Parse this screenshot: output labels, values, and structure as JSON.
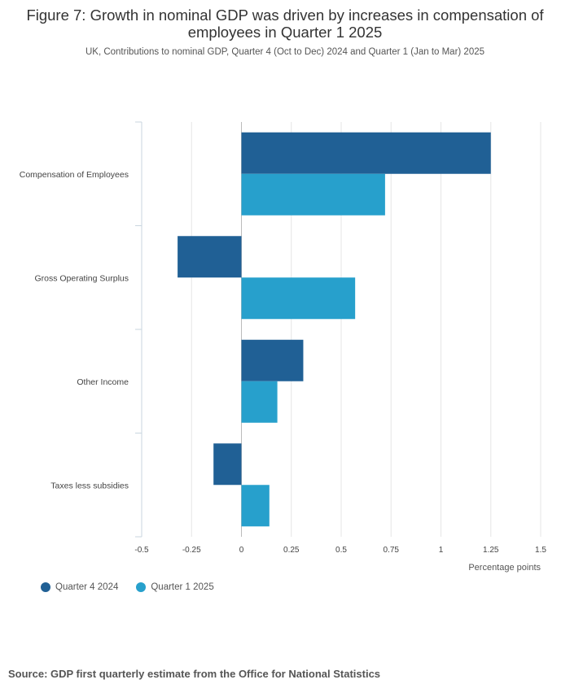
{
  "title": "Figure 7: Growth in nominal GDP was driven by increases in compensation of employees in Quarter 1 2025",
  "subtitle": "UK, Contributions to nominal GDP, Quarter 4 (Oct to Dec) 2024 and Quarter 1 (Jan to Mar) 2025",
  "source": "Source: GDP first quarterly estimate from the Office for National Statistics",
  "colors": {
    "q4": "#206095",
    "q1": "#27a0cc"
  },
  "chart_data": {
    "type": "bar",
    "orientation": "horizontal",
    "title": "Figure 7: Growth in nominal GDP was driven by increases in compensation of employees in Quarter 1 2025",
    "xlabel": "Percentage points",
    "ylabel": "",
    "xlim": [
      -0.5,
      1.5
    ],
    "xticks": [
      -0.5,
      -0.25,
      0,
      0.25,
      0.5,
      0.75,
      1,
      1.25,
      1.5
    ],
    "xtick_labels": [
      "-0.5",
      "-0.25",
      "0",
      "0.25",
      "0.5",
      "0.75",
      "1",
      "1.25",
      "1.5"
    ],
    "grid": true,
    "legend_position": "bottom-left",
    "categories": [
      "Compensation of Employees",
      "Gross Operating Surplus",
      "Other Income",
      "Taxes less subsidies"
    ],
    "series": [
      {
        "name": "Quarter 4 2024",
        "color": "#206095",
        "values": [
          1.25,
          -0.32,
          0.31,
          -0.14
        ]
      },
      {
        "name": "Quarter 1 2025",
        "color": "#27a0cc",
        "values": [
          0.72,
          0.57,
          0.18,
          0.14
        ]
      }
    ]
  }
}
